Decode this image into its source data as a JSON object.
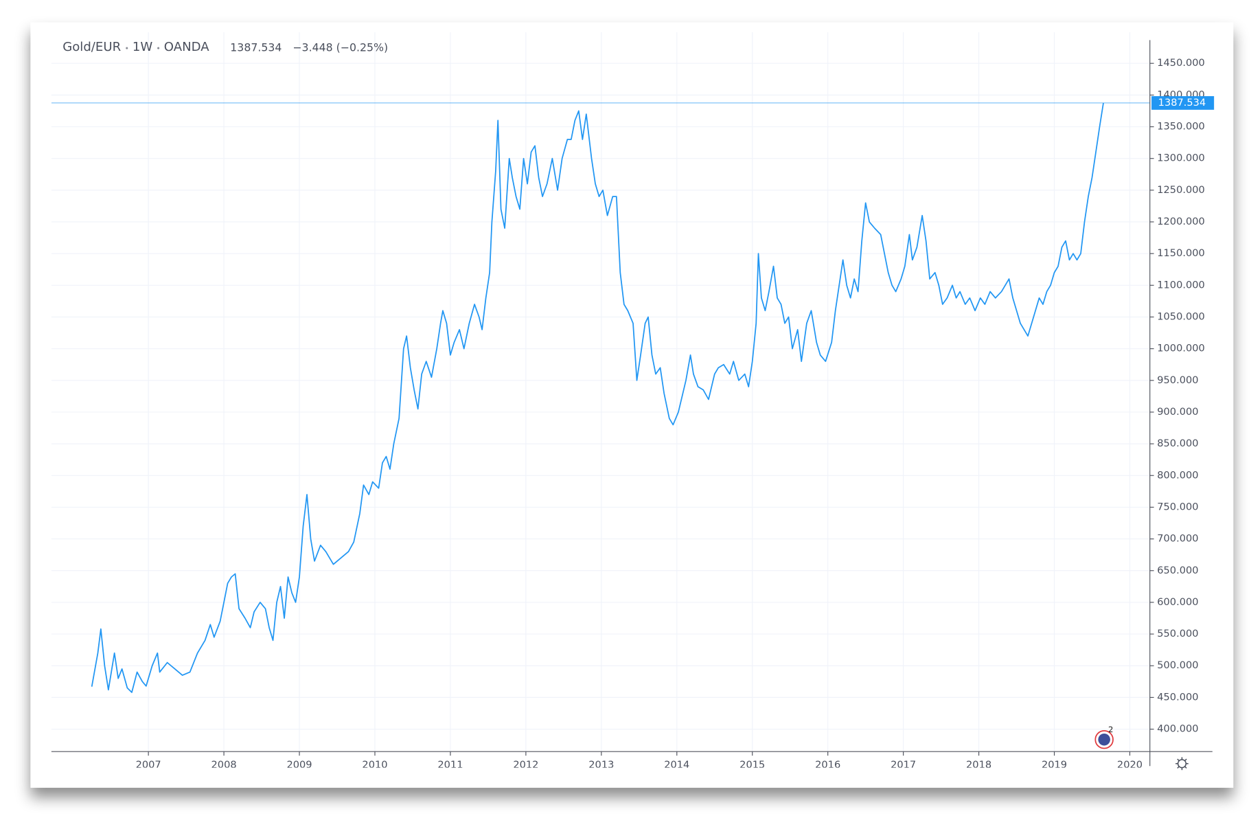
{
  "chart_data": {
    "type": "line",
    "symbol": "Gold/EUR",
    "interval": "1W",
    "source": "OANDA",
    "last_value": 1387.534,
    "change": "−3.448 (−0.25%)",
    "color": "#2196f3",
    "grid": true,
    "xlim": [
      2005.715,
      2020.266
    ],
    "xticks": [
      2007,
      2008,
      2009,
      2010,
      2011,
      2012,
      2013,
      2014,
      2015,
      2016,
      2017,
      2018,
      2019,
      2020
    ],
    "ylim": [
      364.6,
      1499.3
    ],
    "yticks": [
      {
        "value": 400,
        "label": "400.000"
      },
      {
        "value": 450,
        "label": "450.000"
      },
      {
        "value": 500,
        "label": "500.000"
      },
      {
        "value": 550,
        "label": "550.000"
      },
      {
        "value": 600,
        "label": "600.000"
      },
      {
        "value": 650,
        "label": "650.000"
      },
      {
        "value": 700,
        "label": "700.000"
      },
      {
        "value": 750,
        "label": "750.000"
      },
      {
        "value": 800,
        "label": "800.000"
      },
      {
        "value": 850,
        "label": "850.000"
      },
      {
        "value": 900,
        "label": "900.000"
      },
      {
        "value": 950,
        "label": "950.000"
      },
      {
        "value": 1000,
        "label": "1000.000"
      },
      {
        "value": 1050,
        "label": "1050.000"
      },
      {
        "value": 1100,
        "label": "1100.000"
      },
      {
        "value": 1150,
        "label": "1150.000"
      },
      {
        "value": 1200,
        "label": "1200.000"
      },
      {
        "value": 1250,
        "label": "1250.000"
      },
      {
        "value": 1300,
        "label": "1300.000"
      },
      {
        "value": 1350,
        "label": "1350.000"
      },
      {
        "value": 1400,
        "label": "1400.000"
      },
      {
        "value": 1450,
        "label": "1450.000"
      }
    ],
    "x": [
      2006.25,
      2006.33,
      2006.37,
      2006.42,
      2006.47,
      2006.55,
      2006.6,
      2006.65,
      2006.72,
      2006.78,
      2006.85,
      2006.92,
      2006.97,
      2007.05,
      2007.12,
      2007.15,
      2007.25,
      2007.35,
      2007.45,
      2007.55,
      2007.65,
      2007.75,
      2007.82,
      2007.87,
      2007.95,
      2008.0,
      2008.05,
      2008.1,
      2008.15,
      2008.2,
      2008.28,
      2008.35,
      2008.4,
      2008.48,
      2008.55,
      2008.6,
      2008.65,
      2008.7,
      2008.75,
      2008.8,
      2008.85,
      2008.9,
      2008.95,
      2009.0,
      2009.05,
      2009.1,
      2009.15,
      2009.2,
      2009.28,
      2009.35,
      2009.45,
      2009.55,
      2009.65,
      2009.72,
      2009.8,
      2009.85,
      2009.92,
      2009.97,
      2010.05,
      2010.1,
      2010.15,
      2010.2,
      2010.25,
      2010.32,
      2010.38,
      2010.42,
      2010.47,
      2010.52,
      2010.57,
      2010.62,
      2010.68,
      2010.75,
      2010.82,
      2010.87,
      2010.9,
      2010.95,
      2011.0,
      2011.05,
      2011.12,
      2011.18,
      2011.25,
      2011.32,
      2011.38,
      2011.42,
      2011.47,
      2011.52,
      2011.55,
      2011.6,
      2011.63,
      2011.67,
      2011.72,
      2011.78,
      2011.82,
      2011.87,
      2011.92,
      2011.97,
      2012.02,
      2012.07,
      2012.12,
      2012.17,
      2012.22,
      2012.28,
      2012.35,
      2012.42,
      2012.48,
      2012.55,
      2012.6,
      2012.65,
      2012.7,
      2012.75,
      2012.8,
      2012.87,
      2012.92,
      2012.97,
      2013.02,
      2013.08,
      2013.15,
      2013.2,
      2013.25,
      2013.3,
      2013.35,
      2013.42,
      2013.47,
      2013.52,
      2013.58,
      2013.62,
      2013.67,
      2013.72,
      2013.78,
      2013.83,
      2013.9,
      2013.95,
      2014.02,
      2014.08,
      2014.12,
      2014.18,
      2014.22,
      2014.28,
      2014.35,
      2014.42,
      2014.5,
      2014.55,
      2014.62,
      2014.7,
      2014.75,
      2014.82,
      2014.9,
      2014.95,
      2015.0,
      2015.05,
      2015.08,
      2015.12,
      2015.17,
      2015.22,
      2015.28,
      2015.33,
      2015.38,
      2015.43,
      2015.48,
      2015.53,
      2015.6,
      2015.65,
      2015.72,
      2015.78,
      2015.85,
      2015.9,
      2015.97,
      2016.05,
      2016.1,
      2016.15,
      2016.2,
      2016.25,
      2016.3,
      2016.35,
      2016.4,
      2016.45,
      2016.5,
      2016.55,
      2016.62,
      2016.7,
      2016.75,
      2016.8,
      2016.85,
      2016.9,
      2016.97,
      2017.02,
      2017.08,
      2017.12,
      2017.18,
      2017.25,
      2017.3,
      2017.35,
      2017.42,
      2017.47,
      2017.52,
      2017.58,
      2017.65,
      2017.7,
      2017.75,
      2017.82,
      2017.88,
      2017.95,
      2018.02,
      2018.08,
      2018.15,
      2018.22,
      2018.3,
      2018.35,
      2018.4,
      2018.45,
      2018.5,
      2018.55,
      2018.6,
      2018.65,
      2018.7,
      2018.75,
      2018.8,
      2018.85,
      2018.9,
      2018.95,
      2019.0,
      2019.05,
      2019.1,
      2019.15,
      2019.2,
      2019.25,
      2019.3,
      2019.35,
      2019.4,
      2019.45,
      2019.5,
      2019.55,
      2019.6,
      2019.65
    ],
    "values": [
      467,
      520,
      558,
      500,
      462,
      520,
      480,
      495,
      465,
      458,
      490,
      475,
      468,
      500,
      520,
      490,
      505,
      495,
      485,
      490,
      520,
      540,
      565,
      545,
      570,
      600,
      630,
      640,
      645,
      590,
      575,
      560,
      585,
      600,
      590,
      560,
      540,
      600,
      625,
      575,
      640,
      615,
      600,
      640,
      720,
      770,
      700,
      665,
      690,
      680,
      660,
      670,
      680,
      695,
      740,
      785,
      770,
      790,
      780,
      820,
      830,
      810,
      850,
      890,
      1000,
      1020,
      970,
      935,
      905,
      960,
      980,
      955,
      1000,
      1040,
      1060,
      1040,
      990,
      1010,
      1030,
      1000,
      1040,
      1070,
      1050,
      1030,
      1080,
      1120,
      1200,
      1280,
      1360,
      1220,
      1190,
      1300,
      1270,
      1240,
      1220,
      1300,
      1260,
      1310,
      1320,
      1270,
      1240,
      1260,
      1300,
      1250,
      1300,
      1330,
      1330,
      1360,
      1375,
      1330,
      1370,
      1300,
      1260,
      1240,
      1250,
      1210,
      1240,
      1240,
      1120,
      1070,
      1060,
      1040,
      950,
      990,
      1040,
      1050,
      990,
      960,
      970,
      930,
      890,
      880,
      900,
      930,
      950,
      990,
      960,
      940,
      935,
      920,
      960,
      970,
      975,
      960,
      980,
      950,
      960,
      940,
      980,
      1040,
      1150,
      1080,
      1060,
      1090,
      1130,
      1080,
      1070,
      1040,
      1050,
      1000,
      1030,
      980,
      1040,
      1060,
      1010,
      990,
      980,
      1010,
      1060,
      1100,
      1140,
      1100,
      1080,
      1110,
      1090,
      1170,
      1230,
      1200,
      1190,
      1180,
      1150,
      1120,
      1100,
      1090,
      1110,
      1130,
      1180,
      1140,
      1160,
      1210,
      1170,
      1110,
      1120,
      1100,
      1070,
      1080,
      1100,
      1080,
      1090,
      1070,
      1080,
      1060,
      1080,
      1070,
      1090,
      1080,
      1090,
      1100,
      1110,
      1080,
      1060,
      1040,
      1030,
      1020,
      1040,
      1060,
      1080,
      1070,
      1090,
      1100,
      1120,
      1130,
      1160,
      1170,
      1140,
      1150,
      1140,
      1150,
      1200,
      1240,
      1270,
      1310,
      1350,
      1387.534
    ]
  }
}
